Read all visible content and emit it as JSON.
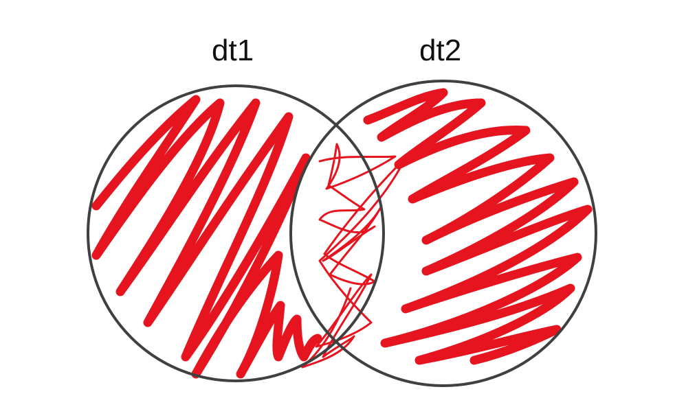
{
  "diagram": {
    "type": "venn",
    "sets": [
      {
        "label": "dt1"
      },
      {
        "label": "dt2"
      }
    ],
    "colors": {
      "outline": "#404040",
      "shading": "#e5141e",
      "background": "#ffffff"
    }
  }
}
